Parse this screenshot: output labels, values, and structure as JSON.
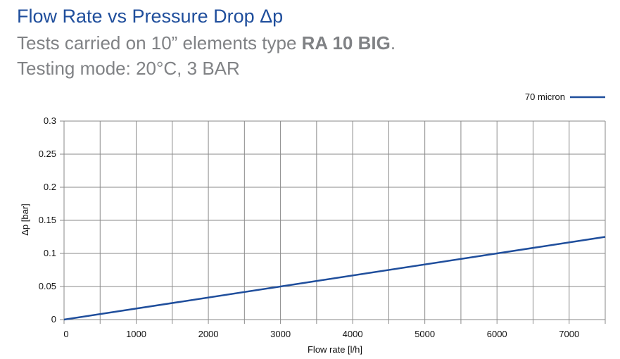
{
  "header": {
    "title": "Flow Rate vs Pressure Drop Δp",
    "subtitle_prefix": "Tests carried on 10” elements type ",
    "subtitle_model": "RA 10 BIG",
    "subtitle_suffix": ".",
    "testing_mode": "Testing mode: 20°C, 3 BAR"
  },
  "colors": {
    "line": "#1f4e9c",
    "grid": "#8a8a8a",
    "title": "#1f4e9c",
    "subtitle": "#808285"
  },
  "chart_data": {
    "type": "line",
    "xlabel": "Flow rate [l/h]",
    "ylabel": "Δp [bar]",
    "xlim": [
      0,
      7500
    ],
    "ylim": [
      0,
      0.3
    ],
    "x_ticks": [
      0,
      1000,
      2000,
      3000,
      4000,
      5000,
      6000,
      7000
    ],
    "x_tick_labels": [
      "0",
      "1000",
      "2000",
      "3000",
      "4000",
      "5000",
      "6000",
      "7000"
    ],
    "y_ticks": [
      0,
      0.05,
      0.1,
      0.15,
      0.2,
      0.25,
      0.3
    ],
    "y_tick_labels": [
      "0",
      "0.05",
      "0.1",
      "0.15",
      "0.2",
      "0.25",
      "0.3"
    ],
    "x_grid_step": 500,
    "grid": true,
    "legend_position": "top-right",
    "series": [
      {
        "name": "70 micron",
        "x": [
          0,
          3000,
          6000,
          7500
        ],
        "y": [
          0,
          0.05,
          0.1,
          0.125
        ]
      }
    ]
  }
}
